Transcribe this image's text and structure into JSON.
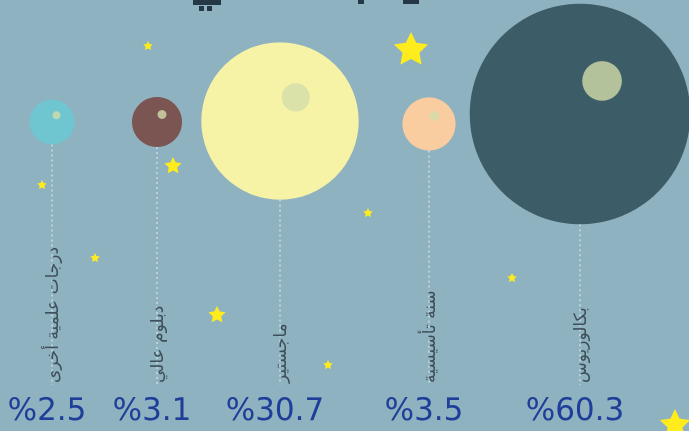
{
  "chart_data": {
    "type": "bubble",
    "categories": [
      "درجات علمية أخرى",
      "دبلوم عالي",
      "ماجستير",
      "سنة تأسيسية",
      "بكالوريوس"
    ],
    "values": [
      2.5,
      3.1,
      30.7,
      3.5,
      60.3
    ],
    "value_labels": [
      "%2.5",
      "%3.1",
      "%30.7",
      "%3.5",
      "%60.3"
    ],
    "colors": [
      "#6fc5d0",
      "#7a5552",
      "#f7f3a6",
      "#f9cda0",
      "#3c5c67"
    ]
  }
}
